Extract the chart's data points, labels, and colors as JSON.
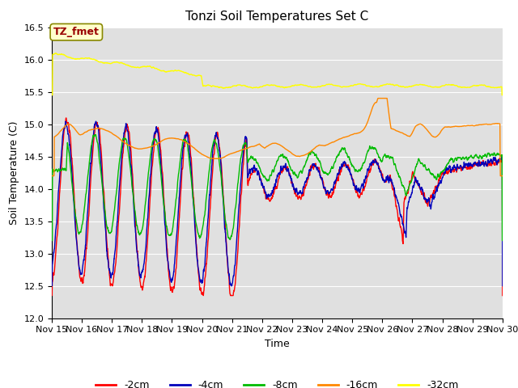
{
  "title": "Tonzi Soil Temperatures Set C",
  "xlabel": "Time",
  "ylabel": "Soil Temperature (C)",
  "ylim": [
    12.0,
    16.5
  ],
  "annotation_label": "TZ_fmet",
  "series_labels": [
    "-2cm",
    "-4cm",
    "-8cm",
    "-16cm",
    "-32cm"
  ],
  "series_colors": [
    "#ff0000",
    "#0000bb",
    "#00bb00",
    "#ff8800",
    "#ffff00"
  ],
  "background_color": "#ffffff",
  "plot_bg_color": "#e0e0e0",
  "grid_color": "#ffffff",
  "title_fontsize": 11,
  "axis_fontsize": 9,
  "tick_fontsize": 8,
  "legend_fontsize": 9
}
